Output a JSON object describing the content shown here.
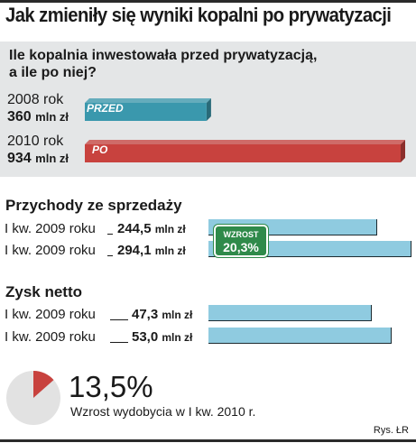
{
  "title": "Jak zmieniły się wyniki kopalni po prywatyzacji",
  "investment": {
    "question_line1": "Ile kopalnia inwestowała przed prywatyzacją,",
    "question_line2": "a ile po niej?",
    "unit": "mln zł",
    "rows": [
      {
        "year": "2008 rok",
        "value": "360",
        "tag": "PRZED"
      },
      {
        "year": "2010 rok",
        "value": "934",
        "tag": "PO"
      }
    ],
    "colors": {
      "before": "#3a98ad",
      "after": "#c8423e"
    }
  },
  "revenue": {
    "title": "Przychody ze sprzedaży",
    "unit": "mln zł",
    "rows": [
      {
        "label": "I kw. 2009 roku",
        "value": "244,5"
      },
      {
        "label": "I kw. 2009 roku",
        "value": "294,1"
      }
    ],
    "badge": {
      "label": "WZROST",
      "value": "20,3%"
    }
  },
  "profit": {
    "title": "Zysk netto",
    "unit": "mln zł",
    "rows": [
      {
        "label": "I kw. 2009 roku",
        "value": "47,3"
      },
      {
        "label": "I kw. 2009 roku",
        "value": "53,0"
      }
    ]
  },
  "production": {
    "value": "13,5%",
    "caption": "Wzrost wydobycia w I kw. 2010 r.",
    "colors": {
      "pie": "#e2e2e2",
      "slice": "#c8423e"
    }
  },
  "credit": "Rys. ŁR",
  "chart_data": [
    {
      "type": "bar",
      "title": "Ile kopalnia inwestowała przed prywatyzacją, a ile po niej?",
      "categories": [
        "2008 rok",
        "2010 rok"
      ],
      "values": [
        360,
        934
      ],
      "unit": "mln zł"
    },
    {
      "type": "bar",
      "title": "Przychody ze sprzedaży",
      "categories": [
        "I kw. 2009 roku",
        "I kw. 2009 roku"
      ],
      "values": [
        244.5,
        294.1
      ],
      "unit": "mln zł",
      "annotation": "WZROST 20,3%"
    },
    {
      "type": "bar",
      "title": "Zysk netto",
      "categories": [
        "I kw. 2009 roku",
        "I kw. 2009 roku"
      ],
      "values": [
        47.3,
        53.0
      ],
      "unit": "mln zł"
    },
    {
      "type": "pie",
      "values": [
        13.5
      ],
      "unit": "%",
      "caption": "Wzrost wydobycia w I kw. 2010 r."
    }
  ]
}
